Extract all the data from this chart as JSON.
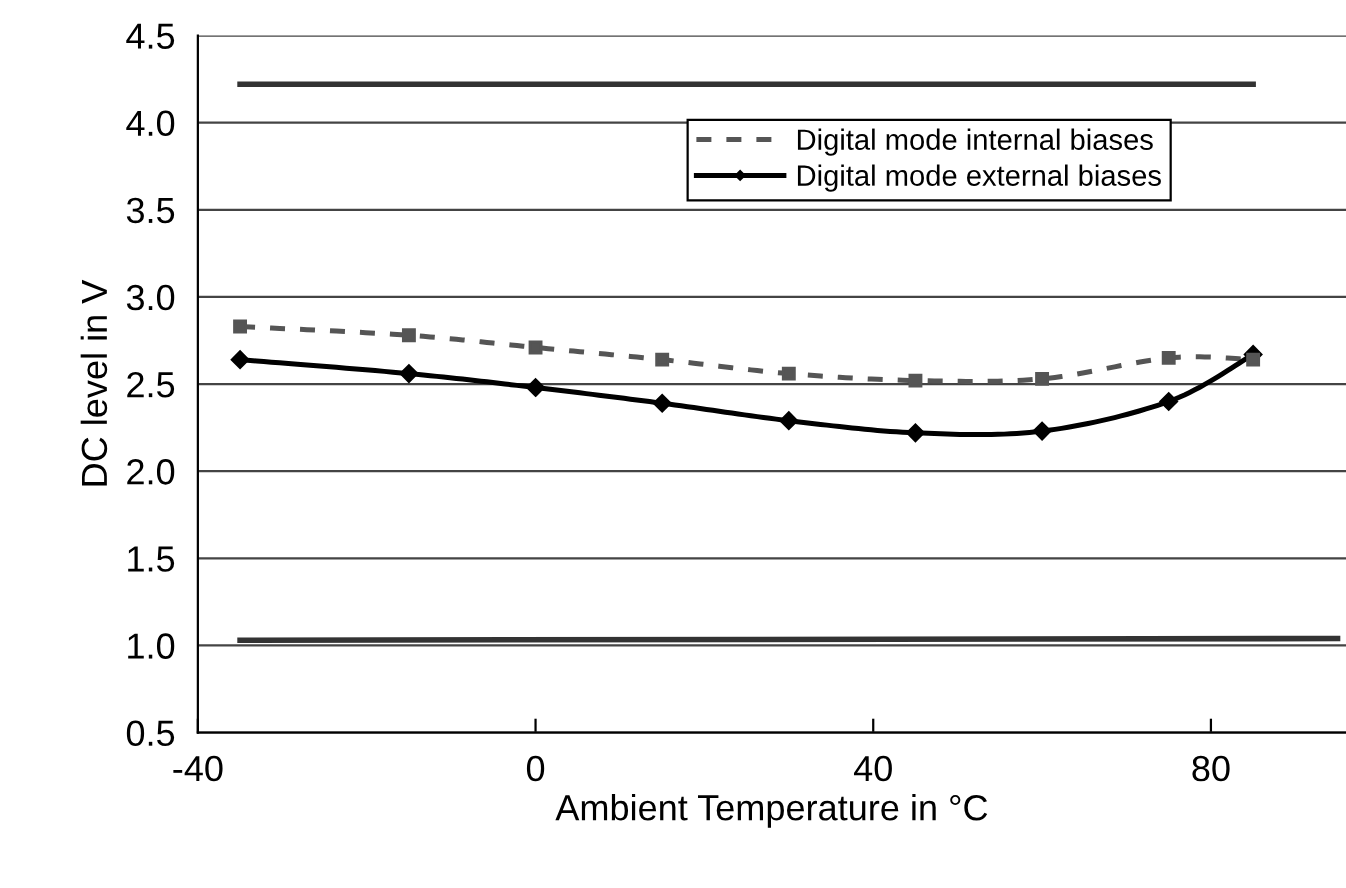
{
  "chart_data": {
    "type": "line",
    "xlabel": "Ambient Temperature in °C",
    "ylabel": "DC level in V",
    "xlim": [
      -40,
      96
    ],
    "xticks": [
      -40,
      0,
      40,
      80
    ],
    "ylim": [
      0.5,
      4.5
    ],
    "yticks": [
      0.5,
      {
        "value": 1,
        "label": "1.0"
      },
      1.5,
      {
        "value": 2,
        "label": "2.0"
      },
      2.5,
      {
        "value": 3,
        "label": "3.0"
      },
      3.5,
      {
        "value": 4,
        "label": "4.0"
      },
      4.5
    ],
    "grid": "y",
    "legend": "top right",
    "series": [
      {
        "x": [
          -35,
          85
        ],
        "values": [
          4.22,
          4.22
        ],
        "color": "#333333",
        "marker": "none",
        "line_style": "solid"
      },
      {
        "name": "Digital mode internal biases",
        "x": [
          -35,
          -15,
          0,
          15,
          30,
          45,
          60,
          75,
          85
        ],
        "values": [
          2.83,
          2.78,
          2.71,
          2.64,
          2.56,
          2.52,
          2.53,
          2.65,
          2.64
        ],
        "color": "#555555",
        "marker": "square",
        "line_style": "dashed"
      },
      {
        "name": "Digital mode external biases",
        "x": [
          -35,
          -15,
          0,
          15,
          30,
          45,
          60,
          75,
          85
        ],
        "values": [
          2.64,
          2.56,
          2.48,
          2.39,
          2.29,
          2.22,
          2.23,
          2.4,
          2.67
        ],
        "color": "#000000",
        "marker": "diamond",
        "line_style": "solid"
      },
      {
        "x": [
          -35,
          95
        ],
        "values": [
          1.03,
          1.04
        ],
        "color": "#333333",
        "marker": "none",
        "line_style": "solid"
      }
    ]
  }
}
